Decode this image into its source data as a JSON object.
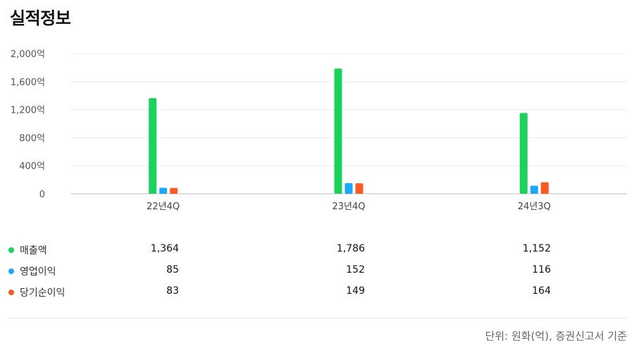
{
  "title": "실적정보",
  "note": "단위: 원화(억), 증권신고서 기준",
  "colors": {
    "sales": "#18d45b",
    "op": "#1aa7ff",
    "net": "#ff5a1f",
    "grid": "#ececec",
    "axis": "#bdbdbd"
  },
  "chart_data": {
    "type": "bar",
    "categories": [
      "22년4Q",
      "23년4Q",
      "24년3Q"
    ],
    "yticks": [
      "0",
      "400억",
      "800억",
      "1,200억",
      "1,600억",
      "2,000억"
    ],
    "ylim": [
      0,
      2000
    ],
    "grid": true,
    "series": [
      {
        "name": "매출액",
        "values": [
          1364,
          1786,
          1152
        ],
        "labels": [
          "1,364",
          "1,786",
          "1,152"
        ]
      },
      {
        "name": "영업이익",
        "values": [
          85,
          152,
          116
        ],
        "labels": [
          "85",
          "152",
          "116"
        ]
      },
      {
        "name": "당기순이익",
        "values": [
          83,
          149,
          164
        ],
        "labels": [
          "83",
          "149",
          "164"
        ]
      }
    ]
  }
}
